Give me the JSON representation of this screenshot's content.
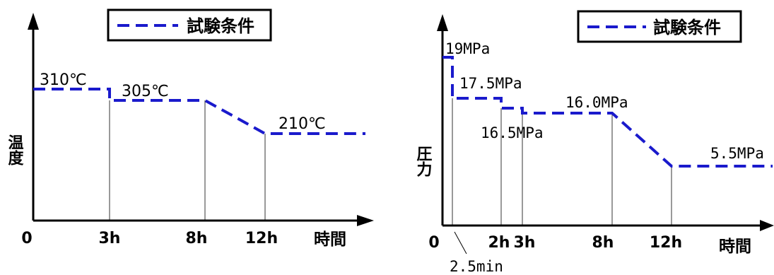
{
  "chart_data": [
    {
      "type": "line",
      "ylabel": "温度",
      "xlabel": "時間",
      "legend": {
        "label": "試験条件",
        "placement": "top"
      },
      "x_ticks": [
        "0",
        "3h",
        "8h",
        "12h"
      ],
      "x_tick_values": [
        0,
        3,
        8,
        12
      ],
      "series": [
        {
          "name": "試験条件",
          "x": [
            0,
            3,
            3,
            8,
            12,
            16
          ],
          "y": [
            310,
            310,
            305,
            305,
            210,
            210
          ]
        }
      ],
      "annotations": [
        "310℃",
        "305℃",
        "210℃"
      ],
      "annotation_values": [
        310,
        305,
        210
      ],
      "grid": false
    },
    {
      "type": "line",
      "ylabel": "圧力",
      "xlabel": "時間",
      "legend": {
        "label": "試験条件",
        "placement": "top"
      },
      "x_ticks": [
        "0",
        "2h",
        "3h",
        "8h",
        "12h"
      ],
      "x_tick_values": [
        0,
        2,
        3,
        8,
        12
      ],
      "extra_tick": "2.5min",
      "series": [
        {
          "name": "試験条件",
          "x": [
            0,
            0.0417,
            0.0417,
            2,
            2,
            3,
            3,
            8,
            12,
            16
          ],
          "y": [
            19,
            19,
            17.5,
            17.5,
            16.5,
            16.5,
            16.0,
            16.0,
            5.5,
            5.5
          ]
        }
      ],
      "annotations": [
        "19MPa",
        "17.5MPa",
        "16.5MPa",
        "16.0MPa",
        "5.5MPa"
      ],
      "annotation_values": [
        19,
        17.5,
        16.5,
        16.0,
        5.5
      ],
      "grid": false
    }
  ],
  "colors": {
    "series": "#1a1acc",
    "axis": "#000000"
  }
}
